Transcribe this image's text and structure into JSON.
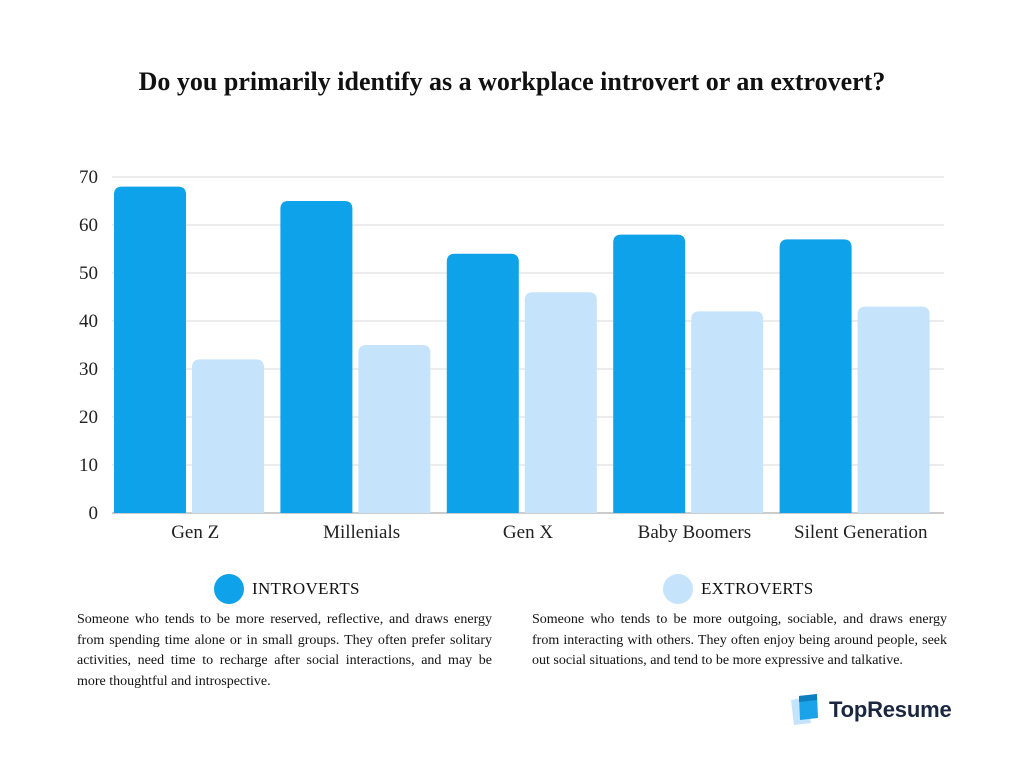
{
  "chart_data": {
    "type": "bar",
    "title": "Do you primarily identify as a workplace introvert or an extrovert?",
    "categories": [
      "Gen Z",
      "Millenials",
      "Gen X",
      "Baby Boomers",
      "Silent Generation"
    ],
    "series": [
      {
        "name": "INTROVERTS",
        "values": [
          68,
          65,
          54,
          58,
          57
        ],
        "color": "#0ea2ea"
      },
      {
        "name": "EXTROVERTS",
        "values": [
          32,
          35,
          46,
          42,
          43
        ],
        "color": "#c5e4fb"
      }
    ],
    "ylim": [
      0,
      70
    ],
    "yticks": [
      0,
      10,
      20,
      30,
      40,
      50,
      60,
      70
    ],
    "grid": true,
    "legend": "bottom"
  },
  "descriptions": {
    "introverts": "Someone who tends to be more reserved, reflective, and draws energy from spending time alone or in small groups. They often prefer solitary activities, need time to recharge after social interactions, and may be more thoughtful and introspective.",
    "extroverts": "Someone who tends to be more outgoing, sociable, and draws energy from interacting with others. They often enjoy being around people, seek out social situations, and tend to be more expressive and talkative."
  },
  "brand": {
    "name": "TopResume",
    "icon": "topresume-logo-icon"
  },
  "colors": {
    "gridline": "#d9d9d9",
    "axis": "#9a9a9a",
    "brand_dark": "#1b2740",
    "brand_light": "#c5e4fb",
    "brand_blue": "#1aa3e8"
  }
}
